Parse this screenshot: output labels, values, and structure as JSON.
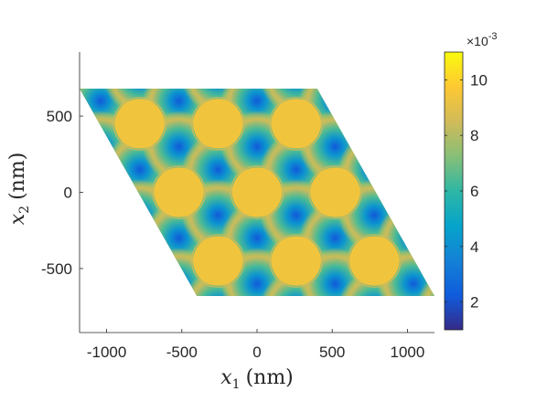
{
  "chart_data": {
    "type": "heatmap",
    "title": "",
    "xlabel": {
      "symbol": "x",
      "subscript": "1",
      "unit": "(nm)"
    },
    "ylabel": {
      "symbol": "x",
      "subscript": "2",
      "unit": "(nm)"
    },
    "xlim": [
      -1180,
      1180
    ],
    "ylim": [
      -920,
      920
    ],
    "x_ticks": [
      -1000,
      -500,
      0,
      500,
      1000
    ],
    "x_tick_labels": [
      "-1000",
      "-500",
      "0",
      "500",
      "1000"
    ],
    "y_ticks": [
      -500,
      0,
      500
    ],
    "y_tick_labels": [
      "-500",
      "0",
      "500"
    ],
    "domain": {
      "shape": "rhombus",
      "corners_nm": [
        [
          -1180,
          680
        ],
        [
          400,
          680
        ],
        [
          1180,
          -680
        ],
        [
          -400,
          -680
        ]
      ]
    },
    "lattice": {
      "period_nm": 520,
      "a1_nm": [
        520,
        0
      ],
      "a2_nm": [
        260,
        -450
      ],
      "hole_radius_nm": 165,
      "hole_centers_nm": [
        [
          -780,
          450
        ],
        [
          -260,
          450
        ],
        [
          260,
          450
        ],
        [
          -520,
          0
        ],
        [
          0,
          0
        ],
        [
          520,
          0
        ],
        [
          -260,
          -450
        ],
        [
          260,
          -450
        ],
        [
          780,
          -450
        ]
      ]
    },
    "colorbar": {
      "min": 1,
      "max": 11,
      "ticks": [
        2,
        4,
        6,
        8,
        10
      ],
      "tick_labels": [
        "2",
        "4",
        "6",
        "8",
        "10"
      ],
      "exponent_label": {
        "base": "×10",
        "power": "-3"
      },
      "colormap": "parula",
      "colors": [
        "#352a87",
        "#0f5cdd",
        "#1481d6",
        "#06a4ca",
        "#2eb7a4",
        "#87bf77",
        "#d1bb59",
        "#fec832",
        "#f9fb0e"
      ]
    },
    "field": {
      "hole_value": 9.4,
      "background_value": 9.8,
      "minimum_value": 2.2,
      "minima_positions": "triangular interstitial sites between holes"
    }
  }
}
